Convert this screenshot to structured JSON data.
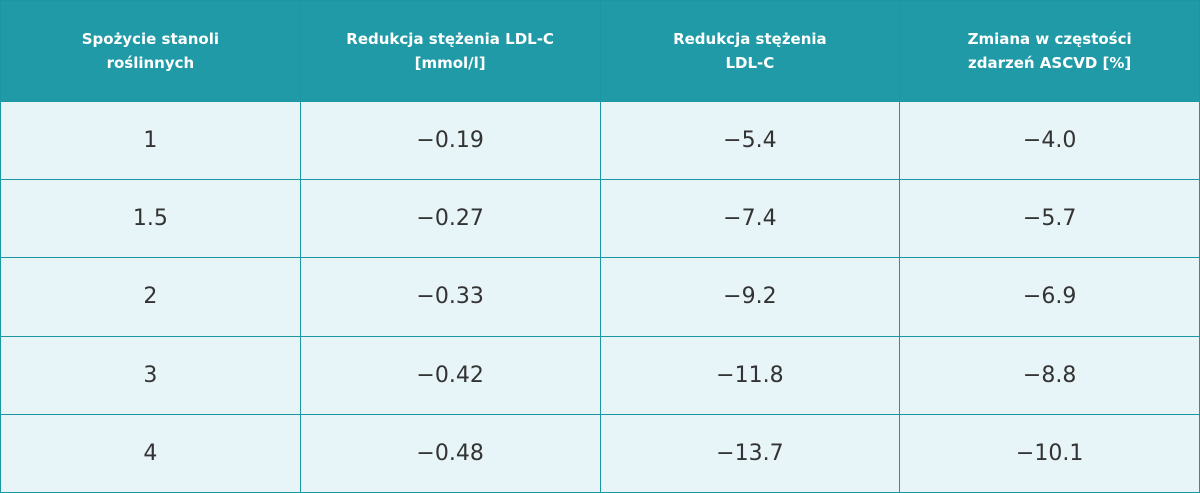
{
  "table": {
    "header": [
      [
        "Spożycie stanoli",
        "roślinnych"
      ],
      [
        "Redukcja stężenia LDL-C",
        "[mmol/l]"
      ],
      [
        "Redukcja stężenia",
        "LDL-C"
      ],
      [
        "Zmiana w częstości",
        "zdarzeń ASCVD [%]"
      ]
    ],
    "rows": [
      [
        "1",
        "−0.19",
        "−5.4",
        "−4.0"
      ],
      [
        "1.5",
        "−0.27",
        "−7.4",
        "−5.7"
      ],
      [
        "2",
        "−0.33",
        "−9.2",
        "−6.9"
      ],
      [
        "3",
        "−0.42",
        "−11.8",
        "−8.8"
      ],
      [
        "4",
        "−0.48",
        "−13.7",
        "−10.1"
      ]
    ]
  }
}
